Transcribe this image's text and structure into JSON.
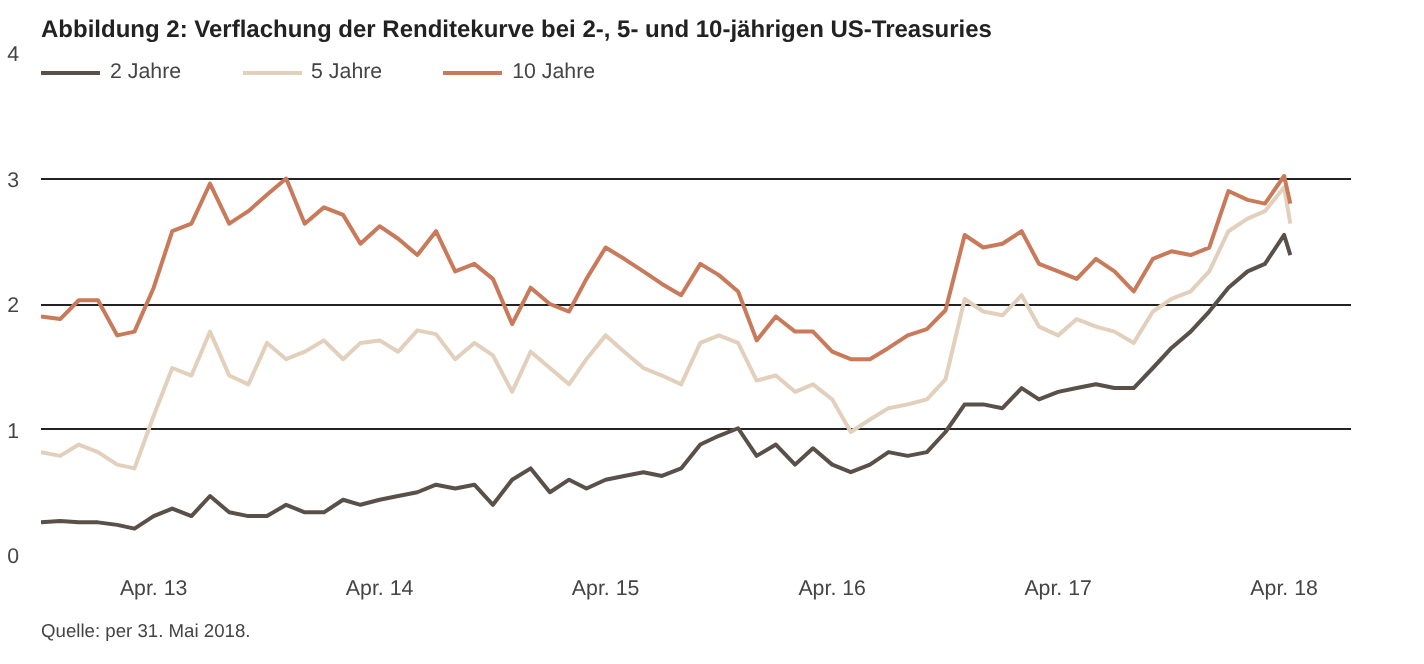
{
  "chart_data": {
    "type": "line",
    "title": "Abbildung 2: Verflachung der Renditekurve bei 2-, 5- und 10-jährigen US-Treasuries",
    "annotations": [
      "Quelle: per 31. Mai 2018."
    ],
    "x": [
      "2012-10-15",
      "2012-11-15",
      "2012-12-15",
      "2013-01-15",
      "2013-02-15",
      "2013-03-15",
      "2013-04-15",
      "2013-05-15",
      "2013-06-15",
      "2013-07-15",
      "2013-08-15",
      "2013-09-15",
      "2013-10-15",
      "2013-11-15",
      "2013-12-15",
      "2014-01-15",
      "2014-02-15",
      "2014-03-15",
      "2014-04-15",
      "2014-05-15",
      "2014-06-15",
      "2014-07-15",
      "2014-08-15",
      "2014-09-15",
      "2014-10-15",
      "2014-11-15",
      "2014-12-15",
      "2015-01-15",
      "2015-02-15",
      "2015-03-15",
      "2015-04-15",
      "2015-05-15",
      "2015-06-15",
      "2015-07-15",
      "2015-08-15",
      "2015-09-15",
      "2015-10-15",
      "2015-11-15",
      "2015-12-15",
      "2016-01-15",
      "2016-02-15",
      "2016-03-15",
      "2016-04-15",
      "2016-05-15",
      "2016-06-15",
      "2016-07-15",
      "2016-08-15",
      "2016-09-15",
      "2016-10-15",
      "2016-11-15",
      "2016-12-15",
      "2017-01-15",
      "2017-02-15",
      "2017-03-15",
      "2017-04-15",
      "2017-05-15",
      "2017-06-15",
      "2017-07-15",
      "2017-08-15",
      "2017-09-15",
      "2017-10-15",
      "2017-11-15",
      "2017-12-15",
      "2018-01-15",
      "2018-02-15",
      "2018-03-15",
      "2018-04-15",
      "2018-04-25"
    ],
    "series": [
      {
        "name": "2 Jahre",
        "color": "#5a504a",
        "values": [
          0.26,
          0.27,
          0.26,
          0.26,
          0.24,
          0.21,
          0.31,
          0.37,
          0.31,
          0.47,
          0.34,
          0.31,
          0.31,
          0.4,
          0.34,
          0.34,
          0.44,
          0.4,
          0.44,
          0.47,
          0.5,
          0.56,
          0.53,
          0.56,
          0.4,
          0.6,
          0.69,
          0.5,
          0.6,
          0.53,
          0.6,
          0.63,
          0.66,
          0.63,
          0.69,
          0.88,
          0.95,
          1.01,
          0.79,
          0.88,
          0.72,
          0.85,
          0.72,
          0.66,
          0.72,
          0.82,
          0.79,
          0.82,
          0.98,
          1.2,
          1.2,
          1.17,
          1.33,
          1.24,
          1.3,
          1.33,
          1.36,
          1.33,
          1.33,
          1.49,
          1.65,
          1.78,
          1.94,
          2.13,
          2.26,
          2.32,
          2.55,
          2.39
        ]
      },
      {
        "name": "5 Jahre",
        "color": "#e2d0bc",
        "values": [
          0.82,
          0.79,
          0.88,
          0.82,
          0.72,
          0.69,
          1.11,
          1.49,
          1.43,
          1.78,
          1.43,
          1.36,
          1.69,
          1.56,
          1.62,
          1.71,
          1.56,
          1.69,
          1.71,
          1.62,
          1.79,
          1.76,
          1.56,
          1.69,
          1.59,
          1.3,
          1.62,
          1.49,
          1.36,
          1.56,
          1.75,
          1.62,
          1.49,
          1.43,
          1.36,
          1.69,
          1.75,
          1.69,
          1.39,
          1.43,
          1.3,
          1.36,
          1.24,
          0.98,
          1.08,
          1.17,
          1.2,
          1.24,
          1.4,
          2.04,
          1.94,
          1.91,
          2.07,
          1.82,
          1.75,
          1.88,
          1.82,
          1.78,
          1.69,
          1.94,
          2.04,
          2.1,
          2.26,
          2.58,
          2.68,
          2.74,
          2.93,
          2.64
        ]
      },
      {
        "name": "10 Jahre",
        "color": "#c87a5a",
        "values": [
          1.9,
          1.88,
          2.03,
          2.03,
          1.75,
          1.78,
          2.13,
          2.58,
          2.64,
          2.96,
          2.64,
          2.74,
          2.87,
          3.0,
          2.64,
          2.77,
          2.71,
          2.48,
          2.62,
          2.52,
          2.39,
          2.58,
          2.26,
          2.32,
          2.2,
          1.84,
          2.13,
          2.0,
          1.94,
          2.2,
          2.45,
          2.36,
          2.26,
          2.16,
          2.07,
          2.32,
          2.23,
          2.1,
          1.71,
          1.9,
          1.78,
          1.78,
          1.62,
          1.56,
          1.56,
          1.65,
          1.75,
          1.8,
          1.95,
          2.55,
          2.45,
          2.48,
          2.58,
          2.32,
          2.26,
          2.2,
          2.36,
          2.26,
          2.1,
          2.36,
          2.42,
          2.39,
          2.45,
          2.9,
          2.83,
          2.8,
          3.02,
          2.8
        ]
      }
    ],
    "xlim": [
      "2012-10-15",
      "2018-08-01"
    ],
    "xticks": [
      {
        "value": "2013-04-15",
        "label": "Apr. 13"
      },
      {
        "value": "2014-04-15",
        "label": "Apr. 14"
      },
      {
        "value": "2015-04-15",
        "label": "Apr. 15"
      },
      {
        "value": "2016-04-15",
        "label": "Apr. 16"
      },
      {
        "value": "2017-04-15",
        "label": "Apr. 17"
      },
      {
        "value": "2018-04-15",
        "label": "Apr. 18"
      }
    ],
    "ylim": [
      0,
      4
    ],
    "yticks": [
      0,
      1,
      2,
      3,
      4
    ],
    "grid": "y",
    "legend": "top left",
    "marker": "none",
    "line_style": "solid"
  }
}
